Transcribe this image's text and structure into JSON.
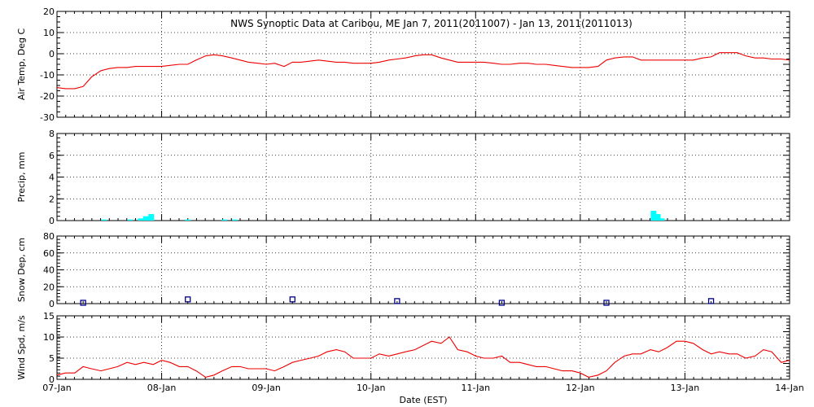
{
  "title": "NWS Synoptic Data at Caribou, ME   Jan  7, 2011(2011007) - Jan 13, 2011(2011013)",
  "xlabel": "Date (EST)",
  "xtick_labels": [
    "07-Jan",
    "08-Jan",
    "09-Jan",
    "10-Jan",
    "11-Jan",
    "12-Jan",
    "13-Jan",
    "14-Jan"
  ],
  "colors": {
    "temp": "#ee0000",
    "precip": "#00ffff",
    "snow": "#000088",
    "wind": "#ee0000"
  },
  "chart_data": [
    {
      "type": "line",
      "ylabel": "Air Temp, Deg C",
      "ylim": [
        -30,
        20
      ],
      "yticks": [
        20,
        10,
        0,
        -10,
        -20,
        -30
      ],
      "xlim": [
        0,
        7
      ],
      "grid": true,
      "series": [
        {
          "x": [
            0,
            0.08,
            0.17,
            0.25,
            0.33,
            0.42,
            0.5,
            0.58,
            0.67,
            0.75,
            0.83,
            0.92,
            1,
            1.08,
            1.17,
            1.25,
            1.33,
            1.42,
            1.5,
            1.58,
            1.67,
            1.75,
            1.83,
            1.92,
            2,
            2.08,
            2.17,
            2.25,
            2.33,
            2.42,
            2.5,
            2.58,
            2.67,
            2.75,
            2.83,
            2.92,
            3,
            3.08,
            3.17,
            3.25,
            3.33,
            3.42,
            3.5,
            3.58,
            3.67,
            3.75,
            3.83,
            3.92,
            4,
            4.08,
            4.17,
            4.25,
            4.33,
            4.42,
            4.5,
            4.58,
            4.67,
            4.75,
            4.83,
            4.92,
            5,
            5.08,
            5.17,
            5.25,
            5.33,
            5.42,
            5.5,
            5.58,
            5.67,
            5.75,
            5.83,
            5.92,
            6,
            6.08,
            6.17,
            6.25,
            6.33,
            6.42,
            6.5,
            6.58,
            6.67,
            6.75,
            6.83,
            6.92,
            7
          ],
          "y": [
            -16,
            -16.5,
            -16.5,
            -15.5,
            -11,
            -8,
            -7,
            -6.5,
            -6.5,
            -6,
            -6,
            -6,
            -6,
            -5.5,
            -5,
            -5,
            -3,
            -1,
            -0.5,
            -1,
            -2,
            -3,
            -4,
            -4.5,
            -5,
            -4.5,
            -6,
            -4,
            -4,
            -3.5,
            -3,
            -3.5,
            -4,
            -4,
            -4.5,
            -4.5,
            -4.5,
            -4,
            -3,
            -2.5,
            -2,
            -1,
            -0.5,
            -0.5,
            -2,
            -3,
            -4,
            -4,
            -4,
            -4,
            -4.5,
            -5,
            -5,
            -4.5,
            -4.5,
            -5,
            -5,
            -5.5,
            -6,
            -6.5,
            -6.5,
            -6.5,
            -6,
            -3,
            -2,
            -1.5,
            -1.5,
            -3,
            -3,
            -3,
            -3,
            -3,
            -3,
            -3,
            -2,
            -1.5,
            0.5,
            0.5,
            0.5,
            -1,
            -2,
            -2,
            -2.5,
            -2.5,
            -3
          ]
        }
      ]
    },
    {
      "type": "bar",
      "ylabel": "Precip, mm",
      "ylim": [
        0,
        8
      ],
      "yticks": [
        8,
        6,
        4,
        2,
        0
      ],
      "xlim": [
        0,
        7
      ],
      "grid": true,
      "x": [
        0.45,
        0.7,
        0.8,
        0.85,
        0.9,
        1.25,
        1.6,
        1.7,
        5.7,
        5.74,
        5.78
      ],
      "values": [
        0.1,
        0.1,
        0.2,
        0.4,
        0.6,
        0.1,
        0.1,
        0.1,
        0.9,
        0.6,
        0.2
      ]
    },
    {
      "type": "scatter",
      "ylabel": "Snow Dep, cm",
      "ylim": [
        0,
        80
      ],
      "yticks": [
        80,
        60,
        40,
        20,
        0
      ],
      "xlim": [
        0,
        7
      ],
      "grid": true,
      "x": [
        0.25,
        1.25,
        2.25,
        3.25,
        4.25,
        5.25,
        6.25
      ],
      "values": [
        1,
        5,
        5,
        3,
        1,
        1,
        3
      ]
    },
    {
      "type": "line",
      "ylabel": "Wind Spd, m/s",
      "ylim": [
        0,
        15
      ],
      "yticks": [
        15,
        10,
        5,
        0
      ],
      "xlim": [
        0,
        7
      ],
      "grid": true,
      "xtick_labels": [
        "07-Jan",
        "08-Jan",
        "09-Jan",
        "10-Jan",
        "11-Jan",
        "12-Jan",
        "13-Jan",
        "14-Jan"
      ],
      "xlabel": "Date (EST)",
      "series": [
        {
          "x": [
            0,
            0.08,
            0.17,
            0.25,
            0.33,
            0.42,
            0.5,
            0.58,
            0.67,
            0.75,
            0.83,
            0.92,
            1,
            1.08,
            1.17,
            1.25,
            1.33,
            1.42,
            1.5,
            1.58,
            1.67,
            1.75,
            1.83,
            1.92,
            2,
            2.08,
            2.17,
            2.25,
            2.33,
            2.42,
            2.5,
            2.58,
            2.67,
            2.75,
            2.83,
            2.92,
            3,
            3.08,
            3.17,
            3.25,
            3.33,
            3.42,
            3.5,
            3.58,
            3.67,
            3.75,
            3.83,
            3.92,
            4,
            4.08,
            4.17,
            4.25,
            4.33,
            4.42,
            4.5,
            4.58,
            4.67,
            4.75,
            4.83,
            4.92,
            5,
            5.08,
            5.17,
            5.25,
            5.33,
            5.42,
            5.5,
            5.58,
            5.67,
            5.75,
            5.83,
            5.92,
            6,
            6.08,
            6.17,
            6.25,
            6.33,
            6.42,
            6.5,
            6.58,
            6.67,
            6.75,
            6.83,
            6.92,
            7
          ],
          "y": [
            1,
            1.5,
            1.5,
            3,
            2.5,
            2,
            2.5,
            3,
            4,
            3.5,
            4,
            3.5,
            4.5,
            4,
            3,
            3,
            2,
            0.5,
            1,
            2,
            3,
            3,
            2.5,
            2.5,
            2.5,
            2,
            3,
            4,
            4.5,
            5,
            5.5,
            6.5,
            7,
            6.5,
            5,
            5,
            5,
            6,
            5.5,
            6,
            6.5,
            7,
            8,
            9,
            8.5,
            10,
            7,
            6.5,
            5.5,
            5,
            5,
            5.5,
            4,
            4,
            3.5,
            3,
            3,
            2.5,
            2,
            2,
            1.5,
            0.5,
            1,
            2,
            4,
            5.5,
            6,
            6,
            7,
            6.5,
            7.5,
            9,
            9,
            8.5,
            7,
            6,
            6.5,
            6,
            6,
            5,
            5.5,
            7,
            6.5,
            4,
            4.5
          ]
        }
      ]
    }
  ]
}
